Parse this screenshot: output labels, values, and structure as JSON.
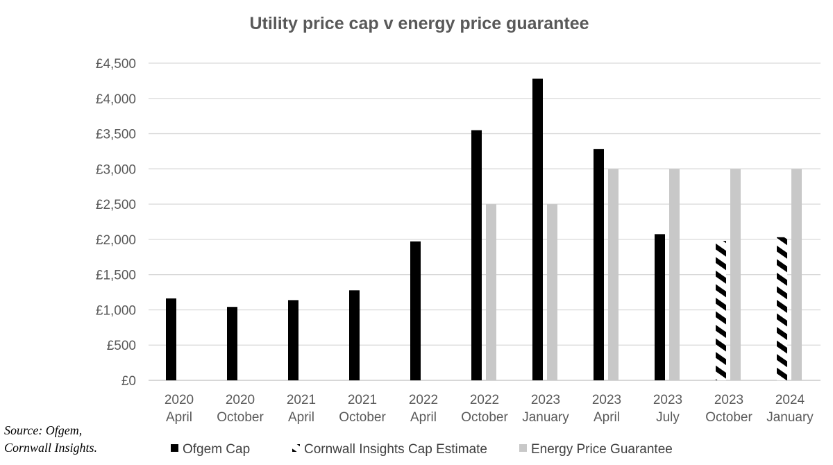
{
  "chart_data": {
    "type": "bar",
    "title": "Utility price cap v energy price guarantee",
    "xlabel": "",
    "ylabel": "",
    "ylim": [
      0,
      4500
    ],
    "ytick_step": 500,
    "ytick_labels": [
      "£0",
      "£500",
      "£1,000",
      "£1,500",
      "£2,000",
      "£2,500",
      "£3,000",
      "£3,500",
      "£4,000",
      "£4,500"
    ],
    "grid": true,
    "legend_placement": "bottom",
    "categories": [
      [
        "2020",
        "April"
      ],
      [
        "2020",
        "October"
      ],
      [
        "2021",
        "April"
      ],
      [
        "2021",
        "October"
      ],
      [
        "2022",
        "April"
      ],
      [
        "2022",
        "October"
      ],
      [
        "2023",
        "January"
      ],
      [
        "2023",
        "April"
      ],
      [
        "2023",
        "July"
      ],
      [
        "2023",
        "October"
      ],
      [
        "2024",
        "January"
      ]
    ],
    "series": [
      {
        "name": "Ofgem Cap",
        "color": "#000000",
        "pattern": "solid",
        "values": [
          1162,
          1042,
          1138,
          1277,
          1971,
          3549,
          4279,
          3280,
          2074,
          null,
          null
        ]
      },
      {
        "name": "Cornwall Insights Cap Estimate",
        "color": "#000000",
        "pattern": "diagonal-hatch",
        "values": [
          null,
          null,
          null,
          null,
          null,
          null,
          null,
          null,
          null,
          1978,
          2030
        ]
      },
      {
        "name": "Energy Price Guarantee",
        "color": "#c8c8c8",
        "pattern": "solid",
        "values": [
          null,
          null,
          null,
          null,
          null,
          2500,
          2500,
          3000,
          3000,
          3000,
          3000
        ]
      }
    ]
  },
  "source": [
    "Source: Ofgem,",
    "Cornwall Insights."
  ]
}
